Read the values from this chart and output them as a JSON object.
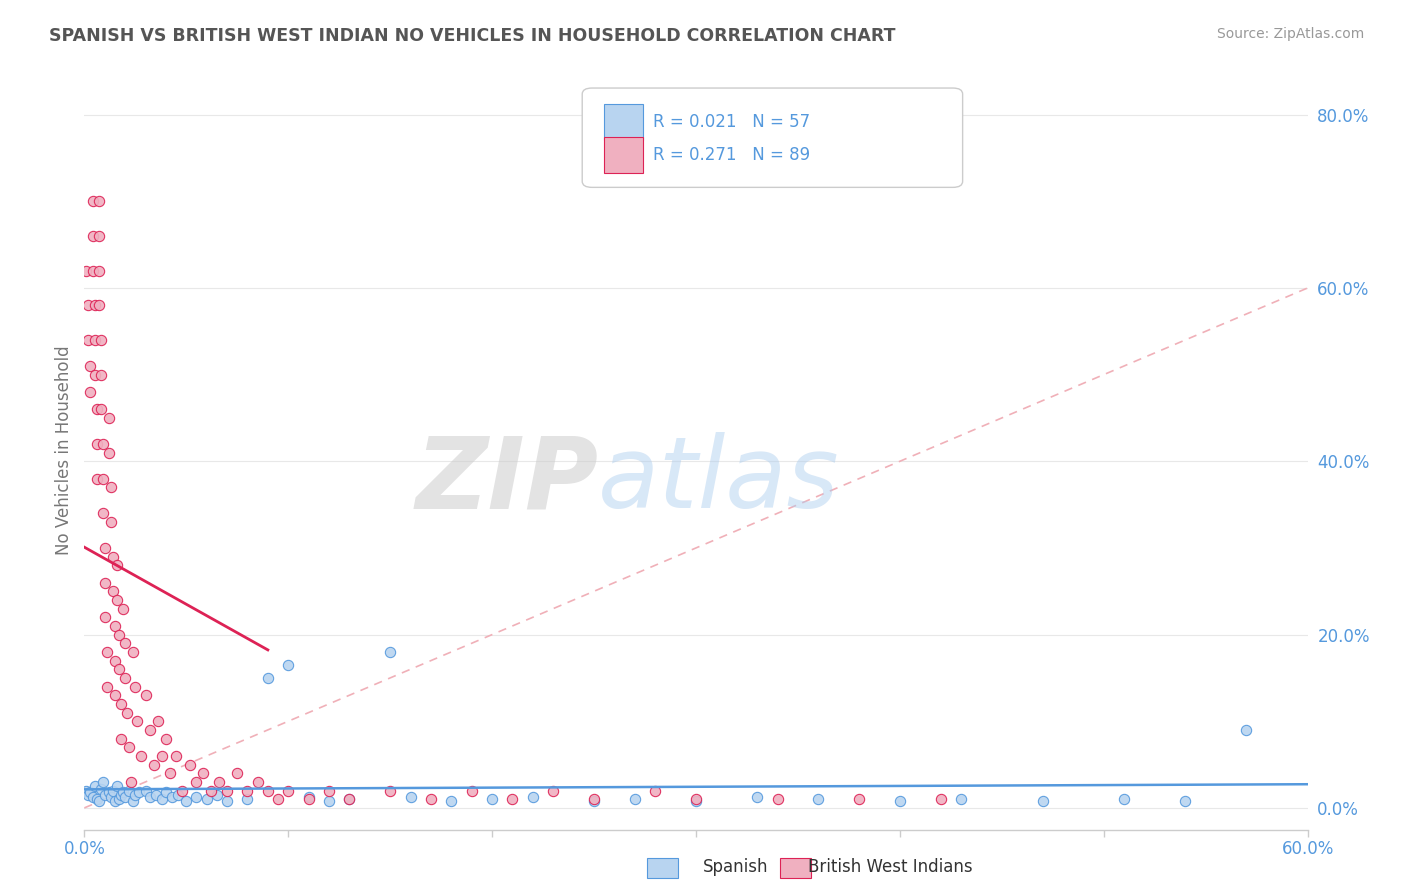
{
  "title": "SPANISH VS BRITISH WEST INDIAN NO VEHICLES IN HOUSEHOLD CORRELATION CHART",
  "source": "Source: ZipAtlas.com",
  "ylabel": "No Vehicles in Household",
  "xlim": [
    0.0,
    0.6
  ],
  "ylim": [
    -0.025,
    0.85
  ],
  "yticks": [
    0.0,
    0.2,
    0.4,
    0.6,
    0.8
  ],
  "ytick_labels": [
    "0.0%",
    "20.0%",
    "40.0%",
    "60.0%",
    "80.0%"
  ],
  "watermark_zip": "ZIP",
  "watermark_atlas": "atlas",
  "legend_r1": "R = 0.021",
  "legend_n1": "N = 57",
  "legend_r2": "R = 0.271",
  "legend_n2": "N = 89",
  "color_spanish": "#b8d4f0",
  "color_bwi": "#f0b0c0",
  "color_line_spanish": "#5599dd",
  "color_line_bwi": "#dd2255",
  "color_diag": "#f0b0b8",
  "color_ytick": "#5599dd",
  "color_xtick": "#5599dd",
  "background_color": "#ffffff",
  "title_color": "#555555",
  "source_color": "#999999",
  "axis_color": "#cccccc",
  "grid_color": "#e8e8e8",
  "sp_x": [
    0.001,
    0.002,
    0.003,
    0.004,
    0.005,
    0.006,
    0.007,
    0.008,
    0.009,
    0.01,
    0.012,
    0.013,
    0.014,
    0.015,
    0.016,
    0.017,
    0.018,
    0.019,
    0.02,
    0.022,
    0.024,
    0.025,
    0.027,
    0.03,
    0.032,
    0.035,
    0.038,
    0.04,
    0.043,
    0.046,
    0.05,
    0.055,
    0.06,
    0.065,
    0.07,
    0.08,
    0.09,
    0.1,
    0.11,
    0.12,
    0.13,
    0.15,
    0.16,
    0.18,
    0.2,
    0.22,
    0.25,
    0.27,
    0.3,
    0.33,
    0.36,
    0.4,
    0.43,
    0.47,
    0.51,
    0.54,
    0.57
  ],
  "sp_y": [
    0.02,
    0.015,
    0.018,
    0.012,
    0.025,
    0.01,
    0.008,
    0.022,
    0.03,
    0.015,
    0.018,
    0.012,
    0.02,
    0.008,
    0.025,
    0.01,
    0.015,
    0.018,
    0.012,
    0.02,
    0.008,
    0.015,
    0.018,
    0.02,
    0.012,
    0.015,
    0.01,
    0.018,
    0.012,
    0.015,
    0.008,
    0.012,
    0.01,
    0.015,
    0.008,
    0.01,
    0.15,
    0.165,
    0.012,
    0.008,
    0.01,
    0.18,
    0.012,
    0.008,
    0.01,
    0.012,
    0.008,
    0.01,
    0.008,
    0.012,
    0.01,
    0.008,
    0.01,
    0.008,
    0.01,
    0.008,
    0.09
  ],
  "bwi_x": [
    0.001,
    0.002,
    0.002,
    0.003,
    0.003,
    0.004,
    0.004,
    0.004,
    0.005,
    0.005,
    0.005,
    0.006,
    0.006,
    0.006,
    0.007,
    0.007,
    0.007,
    0.007,
    0.008,
    0.008,
    0.008,
    0.009,
    0.009,
    0.009,
    0.01,
    0.01,
    0.01,
    0.011,
    0.011,
    0.012,
    0.012,
    0.013,
    0.013,
    0.014,
    0.014,
    0.015,
    0.015,
    0.015,
    0.016,
    0.016,
    0.017,
    0.017,
    0.018,
    0.018,
    0.019,
    0.02,
    0.02,
    0.021,
    0.022,
    0.023,
    0.024,
    0.025,
    0.026,
    0.028,
    0.03,
    0.032,
    0.034,
    0.036,
    0.038,
    0.04,
    0.042,
    0.045,
    0.048,
    0.052,
    0.055,
    0.058,
    0.062,
    0.066,
    0.07,
    0.075,
    0.08,
    0.085,
    0.09,
    0.095,
    0.1,
    0.11,
    0.12,
    0.13,
    0.15,
    0.17,
    0.19,
    0.21,
    0.23,
    0.25,
    0.28,
    0.3,
    0.34,
    0.38,
    0.42
  ],
  "bwi_y": [
    0.62,
    0.58,
    0.54,
    0.51,
    0.48,
    0.7,
    0.66,
    0.62,
    0.58,
    0.54,
    0.5,
    0.46,
    0.42,
    0.38,
    0.7,
    0.66,
    0.62,
    0.58,
    0.54,
    0.5,
    0.46,
    0.42,
    0.38,
    0.34,
    0.3,
    0.26,
    0.22,
    0.18,
    0.14,
    0.45,
    0.41,
    0.37,
    0.33,
    0.29,
    0.25,
    0.21,
    0.17,
    0.13,
    0.28,
    0.24,
    0.2,
    0.16,
    0.12,
    0.08,
    0.23,
    0.19,
    0.15,
    0.11,
    0.07,
    0.03,
    0.18,
    0.14,
    0.1,
    0.06,
    0.13,
    0.09,
    0.05,
    0.1,
    0.06,
    0.08,
    0.04,
    0.06,
    0.02,
    0.05,
    0.03,
    0.04,
    0.02,
    0.03,
    0.02,
    0.04,
    0.02,
    0.03,
    0.02,
    0.01,
    0.02,
    0.01,
    0.02,
    0.01,
    0.02,
    0.01,
    0.02,
    0.01,
    0.02,
    0.01,
    0.02,
    0.01,
    0.01,
    0.01,
    0.01
  ]
}
